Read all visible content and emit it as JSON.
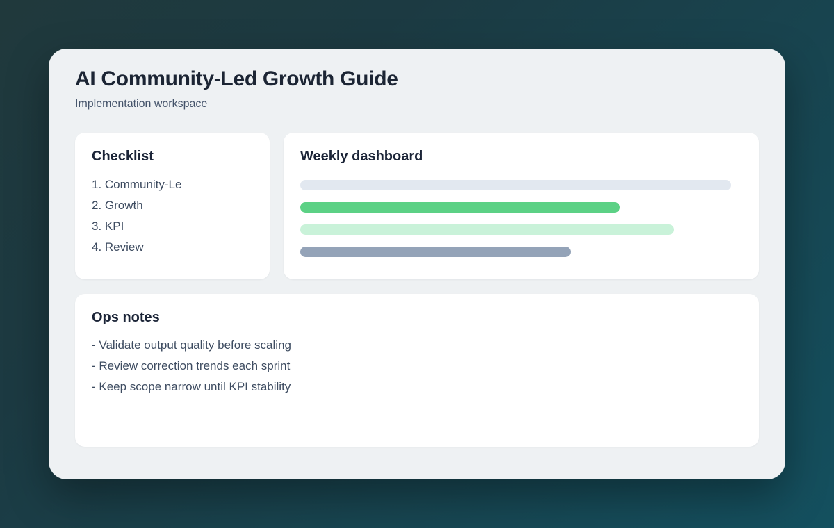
{
  "page": {
    "title": "AI Community-Led Growth Guide",
    "subtitle": "Implementation workspace"
  },
  "checklist": {
    "heading": "Checklist",
    "items": [
      "1. Community-Le",
      "2. Growth",
      "3. KPI",
      "4. Review"
    ]
  },
  "dashboard": {
    "heading": "Weekly dashboard",
    "bars": [
      {
        "name": "bar-1",
        "width_pct": 97.5,
        "color": "#e2e8f0"
      },
      {
        "name": "bar-2",
        "width_pct": 72.3,
        "color": "#5cd185"
      },
      {
        "name": "bar-3",
        "width_pct": 84.6,
        "color": "#c9f2d9"
      },
      {
        "name": "bar-4",
        "width_pct": 61.2,
        "color": "#94a3b8"
      }
    ]
  },
  "ops_notes": {
    "heading": "Ops notes",
    "items": [
      "- Validate output quality before scaling",
      "- Review correction trends each sprint",
      "- Keep scope narrow until KPI stability"
    ]
  },
  "colors": {
    "background_start": "#20393c",
    "background_end": "#14505f",
    "panel": "#eef1f3",
    "card": "#ffffff",
    "title_text": "#1c2534",
    "body_text": "#3e4c61"
  }
}
